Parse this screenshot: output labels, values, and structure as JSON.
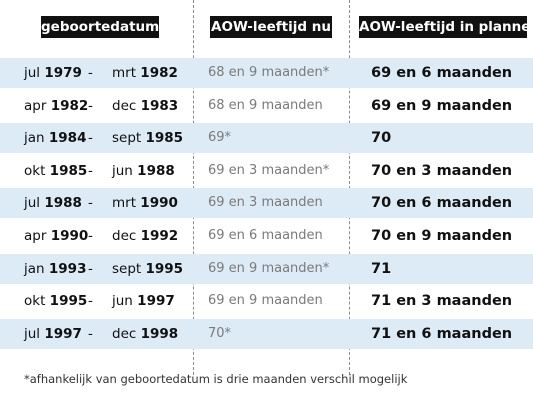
{
  "headers": {
    "birthdate": "geboortedatum",
    "current_age": "AOW-leeftijd nu",
    "planned_age": "AOW-leeftijd in plannen"
  },
  "range_separator": "-",
  "rows": [
    {
      "from_month": "jul",
      "from_year": "1979",
      "to_month": "mrt",
      "to_year": "1982",
      "current": "68 en 9 maanden*",
      "planned": "69 en 6 maanden",
      "shaded": true
    },
    {
      "from_month": "apr",
      "from_year": "1982",
      "to_month": "dec",
      "to_year": "1983",
      "current": "68 en 9 maanden",
      "planned": "69 en 9 maanden",
      "shaded": false
    },
    {
      "from_month": "jan",
      "from_year": "1984",
      "to_month": "sept",
      "to_year": "1985",
      "current": "69*",
      "planned": "70",
      "shaded": true
    },
    {
      "from_month": "okt",
      "from_year": "1985",
      "to_month": "jun",
      "to_year": "1988",
      "current": "69 en 3 maanden*",
      "planned": "70 en 3 maanden",
      "shaded": false
    },
    {
      "from_month": "jul",
      "from_year": "1988",
      "to_month": "mrt",
      "to_year": "1990",
      "current": "69 en 3 maanden",
      "planned": "70 en 6 maanden",
      "shaded": true
    },
    {
      "from_month": "apr",
      "from_year": "1990",
      "to_month": "dec",
      "to_year": "1992",
      "current": "69 en 6 maanden",
      "planned": "70 en 9 maanden",
      "shaded": false
    },
    {
      "from_month": "jan",
      "from_year": "1993",
      "to_month": "sept",
      "to_year": "1995",
      "current": "69 en 9 maanden*",
      "planned": "71",
      "shaded": true
    },
    {
      "from_month": "okt",
      "from_year": "1995",
      "to_month": "jun",
      "to_year": "1997",
      "current": "69 en 9 maanden",
      "planned": "71 en 3 maanden",
      "shaded": false
    },
    {
      "from_month": "jul",
      "from_year": "1997",
      "to_month": "dec",
      "to_year": "1998",
      "current": "70*",
      "planned": "71 en 6 maanden",
      "shaded": true
    }
  ],
  "footnote": "*afhankelijk van geboortedatum is drie maanden verschil mogelijk",
  "colors": {
    "row_shade": "#ddebf7",
    "header_bg": "#111111",
    "header_text": "#ffffff",
    "current_text": "#7a7a7a",
    "divider": "#8c8c8c"
  }
}
